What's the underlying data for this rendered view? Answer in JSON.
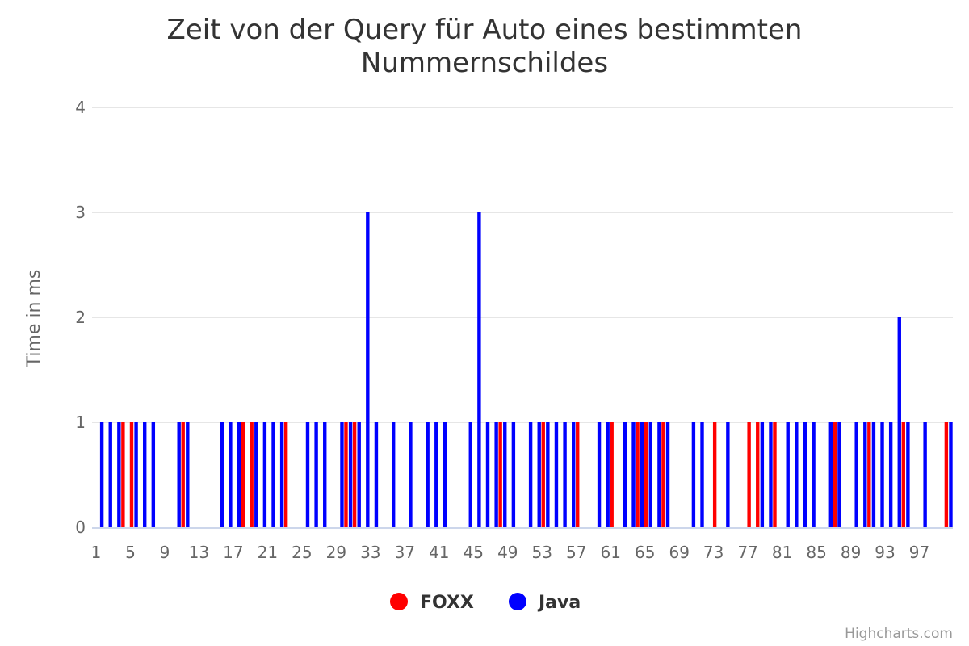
{
  "chart_data": {
    "type": "bar",
    "title": "Zeit von der Query für Auto eines bestimmten Nummernschildes",
    "title_lines": [
      "Zeit von der Query für Auto eines bestimmten",
      "Nummernschildes"
    ],
    "xlabel": "",
    "ylabel": "Time in ms",
    "ylim": [
      0,
      4
    ],
    "y_ticks": [
      0,
      1,
      2,
      3,
      4
    ],
    "x_categories_count": 100,
    "x_tick_labels": [
      "1",
      "5",
      "9",
      "13",
      "17",
      "21",
      "25",
      "29",
      "33",
      "37",
      "41",
      "45",
      "49",
      "53",
      "57",
      "61",
      "65",
      "69",
      "73",
      "77",
      "81",
      "85",
      "89",
      "93",
      "97"
    ],
    "grid": true,
    "legend_position": "bottom-center",
    "series": [
      {
        "name": "FOXX",
        "color": "#ff0000",
        "values": [
          0,
          0,
          0,
          1,
          1,
          0,
          0,
          0,
          0,
          0,
          1,
          0,
          0,
          0,
          0,
          0,
          0,
          1,
          1,
          0,
          0,
          0,
          1,
          0,
          0,
          0,
          0,
          0,
          0,
          1,
          1,
          0,
          0,
          0,
          0,
          0,
          0,
          0,
          0,
          0,
          0,
          0,
          0,
          0,
          0,
          0,
          0,
          1,
          0,
          0,
          0,
          0,
          1,
          0,
          0,
          0,
          1,
          0,
          0,
          0,
          1,
          0,
          0,
          1,
          1,
          0,
          1,
          0,
          0,
          0,
          0,
          0,
          1,
          0,
          0,
          0,
          1,
          1,
          0,
          1,
          0,
          0,
          0,
          0,
          0,
          0,
          1,
          0,
          0,
          0,
          1,
          0,
          0,
          0,
          1,
          0,
          0,
          0,
          0,
          1
        ]
      },
      {
        "name": "Java",
        "color": "#0000ff",
        "values": [
          1,
          1,
          1,
          0,
          1,
          1,
          1,
          0,
          0,
          1,
          1,
          0,
          0,
          0,
          1,
          1,
          1,
          0,
          1,
          1,
          1,
          1,
          0,
          0,
          1,
          1,
          1,
          0,
          1,
          1,
          1,
          3,
          1,
          0,
          1,
          0,
          1,
          0,
          1,
          1,
          1,
          0,
          0,
          1,
          3,
          1,
          1,
          1,
          1,
          0,
          1,
          1,
          1,
          1,
          1,
          1,
          0,
          0,
          1,
          1,
          0,
          1,
          1,
          1,
          1,
          1,
          1,
          0,
          0,
          1,
          1,
          0,
          0,
          1,
          0,
          0,
          0,
          1,
          1,
          0,
          1,
          1,
          1,
          1,
          0,
          1,
          1,
          0,
          1,
          1,
          1,
          1,
          1,
          2,
          1,
          0,
          1,
          0,
          0,
          1
        ]
      }
    ],
    "credits": "Highcharts.com"
  },
  "colors": {
    "foxx": "#ff0000",
    "java": "#0000ff"
  }
}
